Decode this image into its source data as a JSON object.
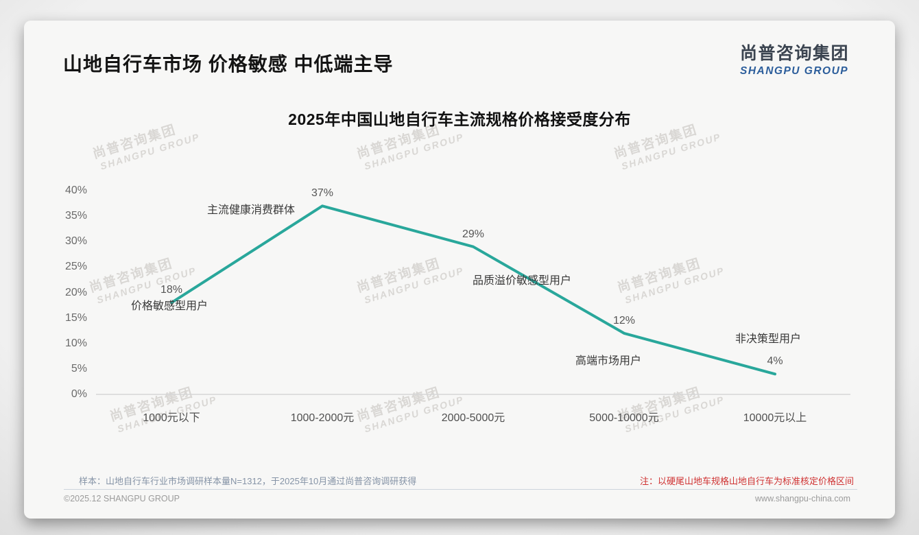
{
  "header": {
    "title": "山地自行车市场 价格敏感 中低端主导",
    "logo_cn": "尚普咨询集团",
    "logo_en": "SHANGPU GROUP"
  },
  "watermark": {
    "line1": "尚普咨询集团",
    "line2": "SHANGPU GROUP"
  },
  "chart_data": {
    "type": "line",
    "title": "2025年中国山地自行车主流规格价格接受度分布",
    "categories": [
      "1000元以下",
      "1000-2000元",
      "2000-5000元",
      "5000-10000元",
      "10000元以上"
    ],
    "values": [
      18,
      37,
      29,
      12,
      4
    ],
    "data_labels": [
      "18%",
      "37%",
      "29%",
      "12%",
      "4%"
    ],
    "annotations": [
      "价格敏感型用户",
      "主流健康消费群体",
      "品质溢价敏感型用户",
      "高端市场用户",
      "非决策型用户"
    ],
    "xlabel": "",
    "ylabel": "",
    "ylim": [
      0,
      40
    ],
    "ytick_step": 5,
    "ytick_suffix": "%",
    "grid": "baseline-only",
    "legend": "none",
    "line_color": "#29A79B",
    "axis_color": "#D6D6D6"
  },
  "footer": {
    "sample_note": "样本：山地自行车行业市场调研样本量N=1312，于2025年10月通过尚普咨询调研获得",
    "red_note": "注：以硬尾山地车规格山地自行车为标准核定价格区间",
    "copyright": "©2025.12 SHANGPU GROUP",
    "website": "www.shangpu-china.com"
  },
  "colors": {
    "line_teal": "#29A79B",
    "note_red": "#CF3131",
    "logo_blue": "#2B5D9B",
    "logo_dark": "#3B4450"
  }
}
